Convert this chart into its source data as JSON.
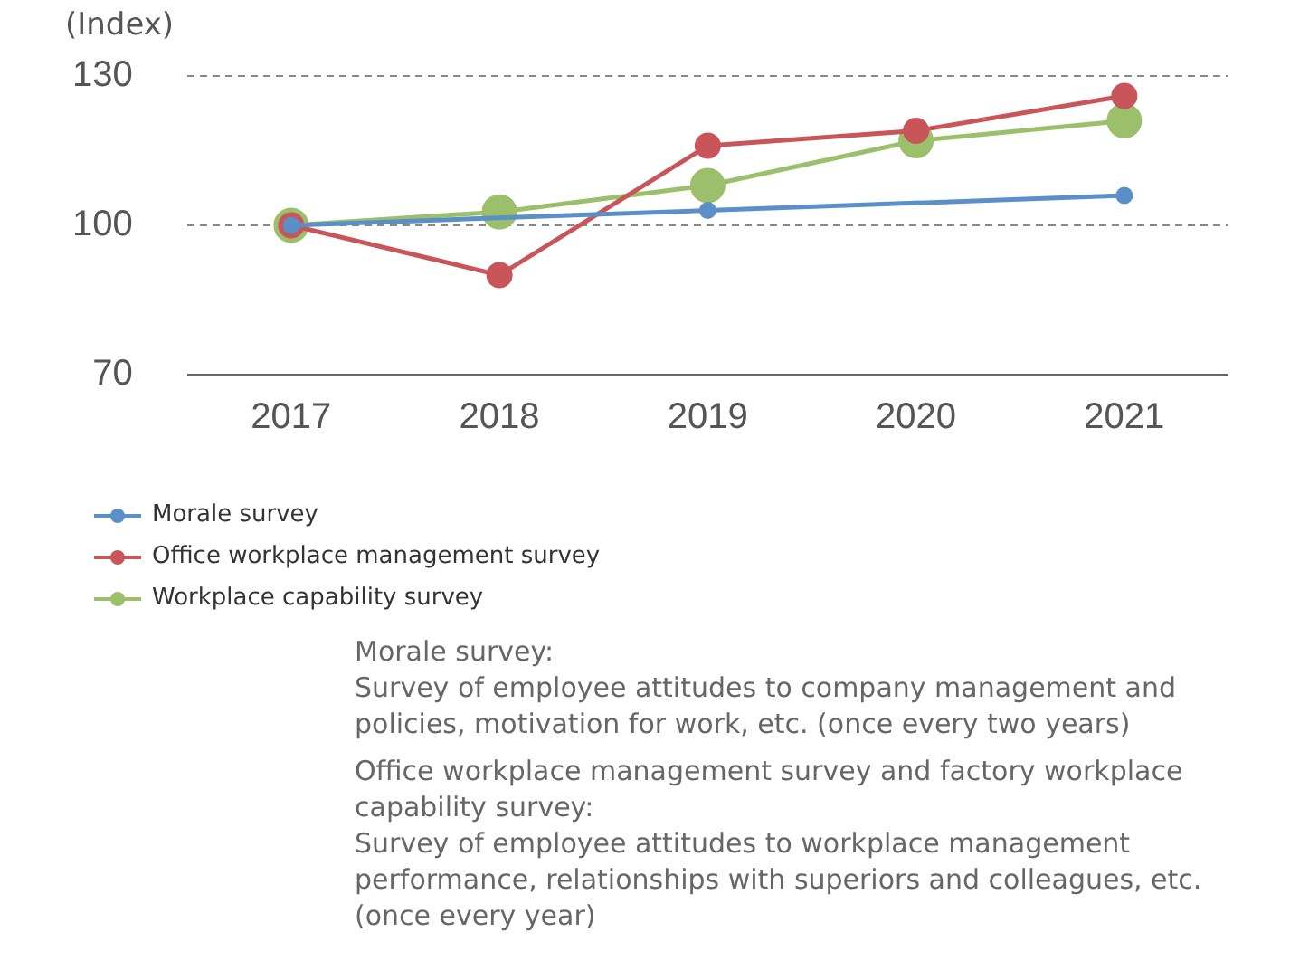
{
  "chart_data": {
    "type": "line",
    "ylabel": "(Index)",
    "categories": [
      "2017",
      "2018",
      "2019",
      "2020",
      "2021"
    ],
    "series": [
      {
        "name": "Morale survey",
        "color": "#5b8fc7",
        "values": [
          100,
          null,
          103,
          null,
          106
        ]
      },
      {
        "name": "Office workplace management survey",
        "color": "#c9555a",
        "values": [
          100,
          90,
          116,
          119,
          126
        ]
      },
      {
        "name": "Workplace capability survey",
        "color": "#9bbf6a",
        "values": [
          100,
          102.7,
          108,
          117,
          121
        ]
      }
    ],
    "ylim": [
      70,
      130
    ],
    "yticks": [
      70,
      100,
      130
    ],
    "grid": "y",
    "legend": "bottom",
    "marker": "circle",
    "line_style": "solid",
    "annotations": [
      "Morale survey:\nSurvey of employee attitudes to company management and policies, motivation for work, etc. (once every two years)",
      "Office workplace management survey and factory workplace capability survey:\nSurvey of employee attitudes to workplace management performance, relationships with superiors and colleagues, etc. (once every year)"
    ]
  }
}
